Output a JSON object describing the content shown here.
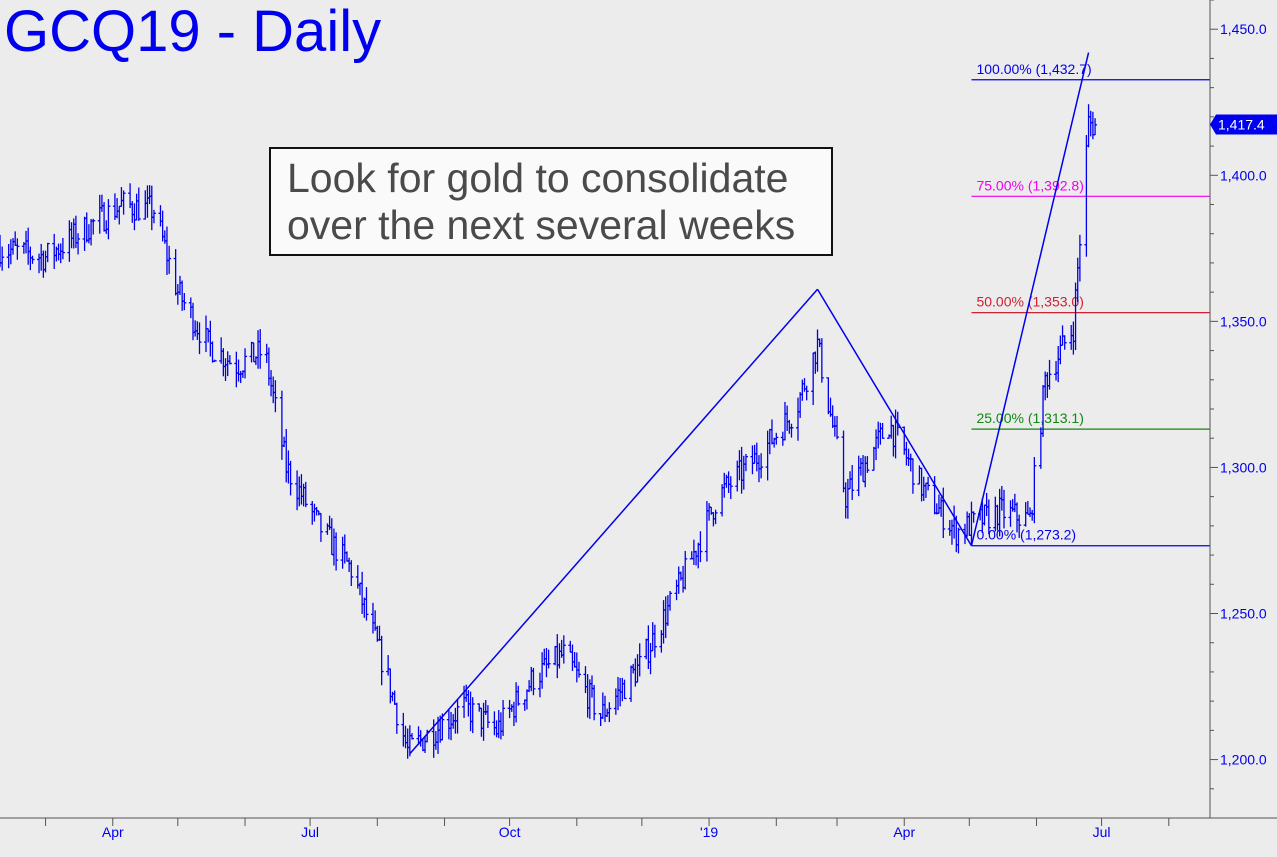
{
  "header": {
    "title": "GCQ19 - Daily"
  },
  "annotation": {
    "line1": "Look for gold to consolidate",
    "line2": "over the next several weeks"
  },
  "colors": {
    "series": "#0000ee",
    "fib_100": "#0000ee",
    "fib_75": "#ee00ee",
    "fib_50": "#cc2233",
    "fib_25": "#118811",
    "fib_0": "#0000ee",
    "background": "#ececec"
  },
  "chart_data": {
    "type": "ohlc",
    "ylim": [
      1180,
      1460
    ],
    "y_ticks": [
      1200,
      1250,
      1300,
      1350,
      1400,
      1450
    ],
    "y_tick_labels": [
      "1,200.0",
      "1,250.0",
      "1,300.0",
      "1,350.0",
      "1,400.0",
      "1,450.0"
    ],
    "x_tick_labels": [
      {
        "label": "Apr",
        "date": "2018-04-01"
      },
      {
        "label": "Jul",
        "date": "2018-07-01"
      },
      {
        "label": "Oct",
        "date": "2018-10-01"
      },
      {
        "label": "'19",
        "date": "2019-01-01"
      },
      {
        "label": "Apr",
        "date": "2019-04-01"
      },
      {
        "label": "Jul",
        "date": "2019-07-01"
      }
    ],
    "x_range": [
      "2018-02-08",
      "2019-08-20"
    ],
    "last_price": {
      "value": 1417.4,
      "label": "1,417.4"
    },
    "series_shape": [
      [
        "2018-02-08",
        1375
      ],
      [
        "2018-03-01",
        1372
      ],
      [
        "2018-03-20",
        1382
      ],
      [
        "2018-04-05",
        1390
      ],
      [
        "2018-04-20",
        1388
      ],
      [
        "2018-05-01",
        1360
      ],
      [
        "2018-05-15",
        1342
      ],
      [
        "2018-05-28",
        1335
      ],
      [
        "2018-06-10",
        1340
      ],
      [
        "2018-06-20",
        1300
      ],
      [
        "2018-07-05",
        1280
      ],
      [
        "2018-07-20",
        1265
      ],
      [
        "2018-08-05",
        1230
      ],
      [
        "2018-08-15",
        1203
      ],
      [
        "2018-09-10",
        1218
      ],
      [
        "2018-09-25",
        1210
      ],
      [
        "2018-10-12",
        1228
      ],
      [
        "2018-10-26",
        1236
      ],
      [
        "2018-11-12",
        1215
      ],
      [
        "2018-11-30",
        1232
      ],
      [
        "2018-12-20",
        1262
      ],
      [
        "2019-01-05",
        1290
      ],
      [
        "2019-01-25",
        1305
      ],
      [
        "2019-02-10",
        1320
      ],
      [
        "2019-02-20",
        1342
      ],
      [
        "2019-03-05",
        1290
      ],
      [
        "2019-03-25",
        1315
      ],
      [
        "2019-04-10",
        1292
      ],
      [
        "2019-04-25",
        1278
      ],
      [
        "2019-05-15",
        1285
      ],
      [
        "2019-05-29",
        1282
      ],
      [
        "2019-06-05",
        1330
      ],
      [
        "2019-06-18",
        1348
      ],
      [
        "2019-06-25",
        1418
      ],
      [
        "2019-06-28",
        1417
      ]
    ],
    "zigzag": [
      {
        "date": "2018-08-16",
        "value": 1202
      },
      {
        "date": "2019-02-20",
        "value": 1361
      },
      {
        "date": "2019-05-02",
        "value": 1273.2
      },
      {
        "date": "2019-06-25",
        "value": 1442
      }
    ],
    "fib_levels": [
      {
        "label": "100.00% (1,432.7)",
        "value": 1432.7,
        "color": "#0000ee"
      },
      {
        "label": "75.00% (1,392.8)",
        "value": 1392.8,
        "color": "#ee00ee"
      },
      {
        "label": "50.00% (1,353.0)",
        "value": 1353.0,
        "color": "#cc2233"
      },
      {
        "label": "25.00% (1,313.1)",
        "value": 1313.1,
        "color": "#118811"
      },
      {
        "label": "0.00% (1,273.2)",
        "value": 1273.2,
        "color": "#0000ee"
      }
    ],
    "fib_start_date": "2019-05-02",
    "grid": false
  }
}
